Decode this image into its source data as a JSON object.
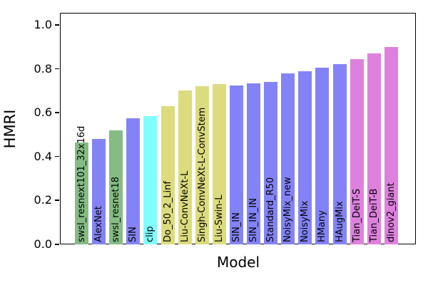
{
  "figure": {
    "background": "#ffffff"
  },
  "chart_data": {
    "type": "bar",
    "title": "",
    "xlabel": "Model",
    "ylabel": "HMRI",
    "ylim": [
      0,
      1.055
    ],
    "yticks": [
      0.0,
      0.2,
      0.4,
      0.6,
      0.8,
      1.0
    ],
    "ytick_labels": [
      "0.0",
      "0.2",
      "0.4",
      "0.6",
      "0.8",
      "1.0"
    ],
    "grid": false,
    "legend_position": "none",
    "bar_label_placement": "vertical-inside-from-baseline",
    "categories": [
      "swsl_resnext101_32x16d",
      "AlexNet",
      "swsl_resnet18",
      "SIN",
      "clip",
      "Do_50_2_Linf",
      "Liu-ConvNeXt-L",
      "Singh-ConvNeXt-L-ConvStem",
      "Liu-Swin-L",
      "SIN_IN",
      "SIN_IN_IN",
      "Standard_R50",
      "NoisyMix_new",
      "NoisyMix",
      "HMany",
      "HAugMix",
      "Tian_DeiT-S",
      "Tian_DeiT-B",
      "dinov2_giant"
    ],
    "values": [
      0.465,
      0.48,
      0.52,
      0.575,
      0.585,
      0.63,
      0.7,
      0.72,
      0.73,
      0.725,
      0.735,
      0.74,
      0.78,
      0.79,
      0.805,
      0.82,
      0.845,
      0.87,
      0.9
    ],
    "palette": {
      "green": "#85BC85",
      "blue": "#8383F7",
      "cyan": "#80FFFF",
      "yellow": "#DCDC7E",
      "pink": "#DE81DE"
    },
    "bar_color_keys": [
      "green",
      "blue",
      "green",
      "blue",
      "cyan",
      "yellow",
      "yellow",
      "yellow",
      "yellow",
      "blue",
      "blue",
      "blue",
      "blue",
      "blue",
      "blue",
      "blue",
      "pink",
      "pink",
      "pink"
    ],
    "bar_label_color": "#000000",
    "axis_color": "#000000"
  }
}
